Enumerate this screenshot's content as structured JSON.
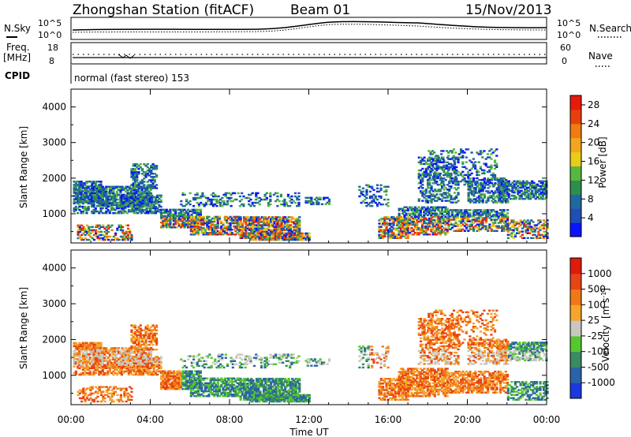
{
  "header": {
    "station": "Zhongshan Station (fitACF)",
    "beam": "Beam 01",
    "date": "15/Nov/2013"
  },
  "panels_top": {
    "nsky_label": "N.Sky",
    "nsearch_label": "N.Search",
    "freq_label_1": "Freq.",
    "freq_label_2": "[MHz]",
    "nave_label": "Nave",
    "cpid_label": "CPID",
    "cpid_value": "normal (fast stereo) 153",
    "noise_left_ticks": [
      "10^5",
      "10^0"
    ],
    "noise_right_ticks": [
      "10^5",
      "10^0"
    ],
    "freq_ticks": [
      "18",
      "8"
    ],
    "nave_ticks": [
      "60",
      "0"
    ]
  },
  "chart_data": [
    {
      "type": "heatmap",
      "name": "power",
      "ylabel": "Slant Range [km]",
      "ylim": [
        180,
        4500
      ],
      "y_ticks": [
        1000,
        2000,
        3000,
        4000
      ],
      "xlim": [
        0,
        24
      ],
      "x_ticks": [
        "00:00",
        "04:00",
        "08:00",
        "12:00",
        "16:00",
        "20:00",
        "00:00"
      ],
      "colorbar": {
        "label": "Power [dB]",
        "ticks": [
          "4",
          "8",
          "12",
          "16",
          "20",
          "24",
          "28"
        ],
        "colors": [
          "#0a14ff",
          "#1f4fb4",
          "#1e6aa0",
          "#2d8f4e",
          "#57b840",
          "#e8cc18",
          "#f3a51c",
          "#f07b10",
          "#e8400c",
          "#e81a0c"
        ]
      }
    },
    {
      "type": "heatmap",
      "name": "velocity",
      "ylabel": "Slant Range [km]",
      "ylim": [
        180,
        4500
      ],
      "y_ticks": [
        1000,
        2000,
        3000,
        4000
      ],
      "xlim": [
        0,
        24
      ],
      "x_ticks": [
        "00:00",
        "04:00",
        "08:00",
        "12:00",
        "16:00",
        "20:00",
        "00:00"
      ],
      "xlabel": "Time UT",
      "colorbar": {
        "label": "Velocity",
        "unit": "[m s",
        "unit_sup": "-1",
        "unit_end": "]",
        "ticks": [
          "1000",
          "500",
          "100",
          "25",
          "-25",
          "-100",
          "-500",
          "-1000"
        ],
        "colors": [
          "#1a3adf",
          "#2a63a8",
          "#3a8a63",
          "#55c830",
          "#c8c8c0",
          "#f4a52a",
          "#f07818",
          "#e84414",
          "#e01a0c"
        ]
      }
    }
  ]
}
